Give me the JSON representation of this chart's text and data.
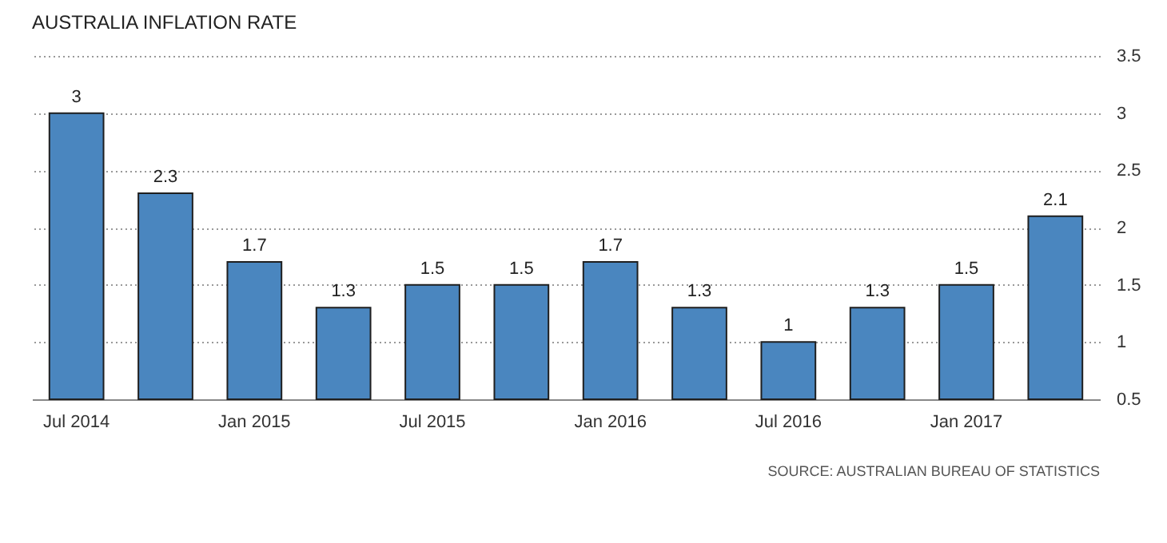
{
  "chart_data": {
    "type": "bar",
    "title": "AUSTRALIA INFLATION RATE",
    "categories": [
      "Jul 2014",
      null,
      "Jan 2015",
      null,
      "Jul 2015",
      null,
      "Jan 2016",
      null,
      "Jul 2016",
      null,
      "Jan 2017",
      null
    ],
    "series": [
      {
        "color": "#4a86bf",
        "values": [
          3,
          2.3,
          1.7,
          1.3,
          1.5,
          1.5,
          1.7,
          1.3,
          1,
          1.3,
          1.5,
          2.1
        ]
      }
    ],
    "ylim": [
      0.5,
      3.5
    ],
    "yticks": [
      0.5,
      1,
      1.5,
      2,
      2.5,
      3,
      3.5
    ],
    "grid": "y",
    "data_labels": true,
    "annotations": [
      "SOURCE: AUSTRALIAN BUREAU OF STATISTICS"
    ]
  }
}
